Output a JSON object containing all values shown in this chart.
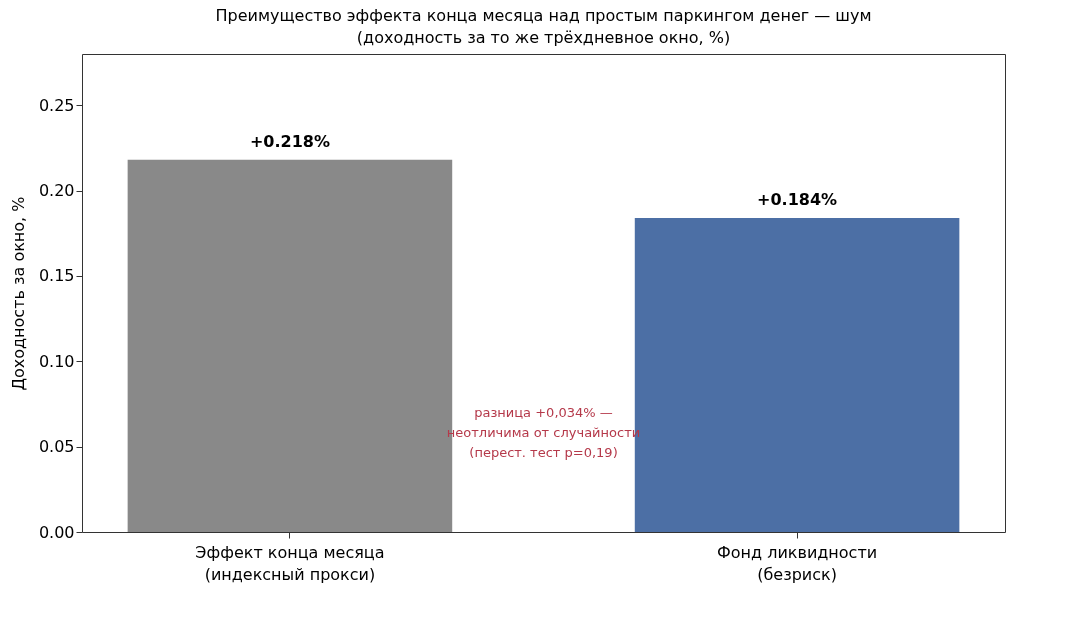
{
  "chart_data": {
    "type": "bar",
    "title": "Преимущество эффекта конца месяца над простым паркингом денег — шум\n(доходность за то же трёхдневное окно, %)",
    "ylabel": "Доходность за окно, %",
    "categories": [
      "Эффект конца месяца\n(индексный прокси)",
      "Фонд ликвидности\n(безриск)"
    ],
    "values": [
      0.218,
      0.184
    ],
    "colors": [
      "#898989",
      "#4c6fa5"
    ],
    "value_labels": [
      "+0.218%",
      "+0.184%"
    ],
    "ylim": [
      0,
      0.28
    ],
    "yticks": [
      {
        "value": 0,
        "label": "0.00"
      },
      0.05,
      {
        "value": 0.1,
        "label": "0.10"
      },
      0.15,
      {
        "value": 0.2,
        "label": "0.20"
      },
      0.25
    ],
    "grid": false,
    "annotations": [
      "разница +0,034% —\nнеотличима от случайности\n(перест. тест p=0,19)"
    ]
  }
}
